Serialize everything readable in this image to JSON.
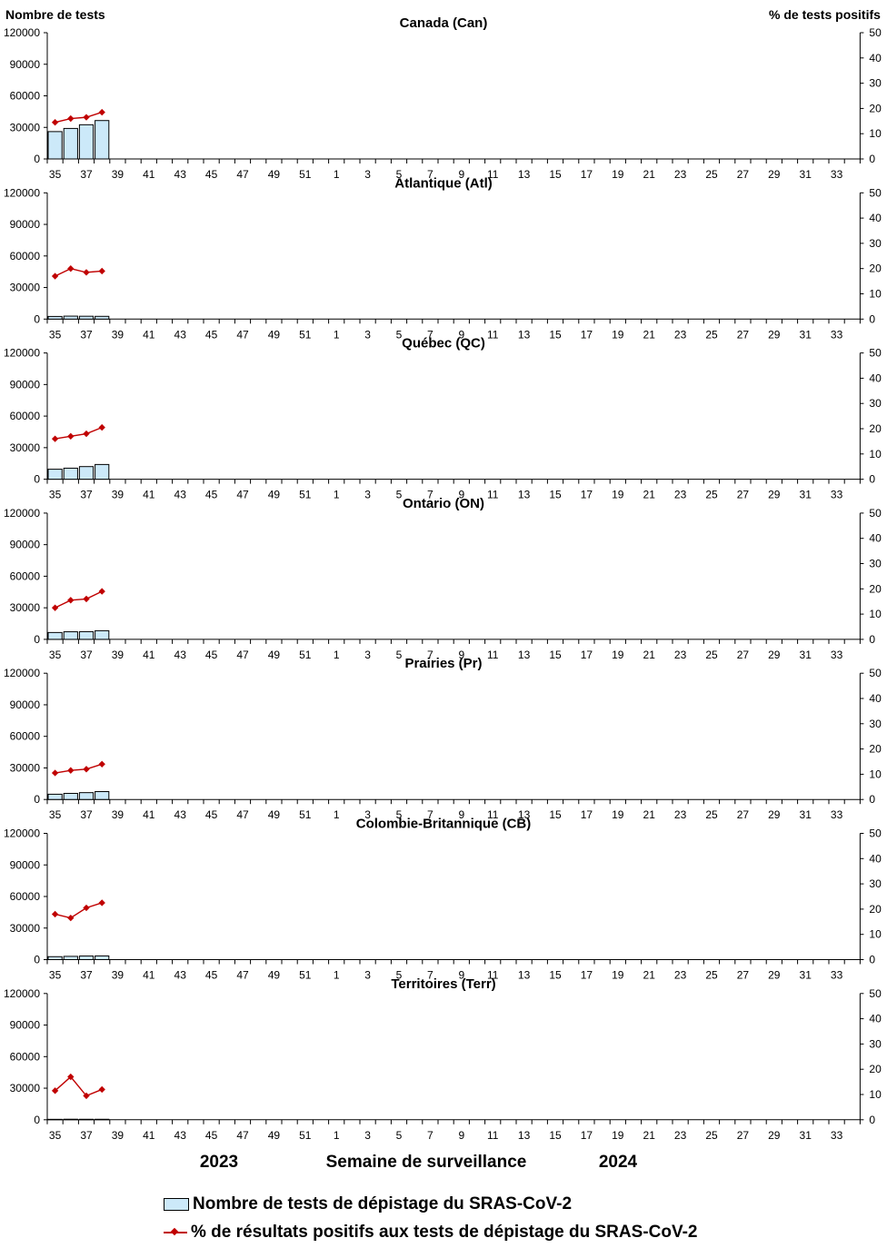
{
  "chart_data": {
    "type": "bar+line",
    "left_axis_title": "Nombre de tests",
    "right_axis_title": "% de tests positifs",
    "xlabel": "Semaine de surveillance",
    "year_labels": [
      "2023",
      "2024"
    ],
    "x_ticks": [
      "35",
      "37",
      "39",
      "41",
      "43",
      "45",
      "47",
      "49",
      "51",
      "1",
      "3",
      "5",
      "7",
      "9",
      "11",
      "13",
      "15",
      "17",
      "19",
      "21",
      "23",
      "25",
      "27",
      "29",
      "31",
      "33"
    ],
    "weeks": [
      "35",
      "36",
      "37",
      "38",
      "39",
      "40",
      "41",
      "42",
      "43",
      "44",
      "45",
      "46",
      "47",
      "48",
      "49",
      "50",
      "51",
      "52",
      "1",
      "2",
      "3",
      "4",
      "5",
      "6",
      "7",
      "8",
      "9",
      "10",
      "11",
      "12",
      "13",
      "14",
      "15",
      "16",
      "17",
      "18",
      "19",
      "20",
      "21",
      "22",
      "23",
      "24",
      "25",
      "26",
      "27",
      "28",
      "29",
      "30",
      "31",
      "32",
      "33",
      "34"
    ],
    "ylim_left": [
      0,
      120000
    ],
    "yticks_left": [
      "0",
      "30000",
      "60000",
      "90000",
      "120000"
    ],
    "ylim_right": [
      0,
      50
    ],
    "yticks_right": [
      "0",
      "10",
      "20",
      "30",
      "40",
      "50"
    ],
    "legend": [
      "Nombre de tests de dépistage du SRAS-CoV-2",
      "% de résultats positifs aux tests de dépistage du SRAS-CoV-2"
    ],
    "colors": {
      "bar_fill": "#cce9f9",
      "bar_stroke": "#000000",
      "line": "#c00000"
    },
    "panels": [
      {
        "title": "Canada (Can)",
        "tests": [
          26000,
          29000,
          32500,
          36500
        ],
        "percent_positive": [
          14.5,
          16.0,
          16.5,
          18.5
        ]
      },
      {
        "title": "Atlantique (Atl)",
        "tests": [
          2500,
          2800,
          2700,
          2600
        ],
        "percent_positive": [
          17.0,
          20.0,
          18.5,
          19.0
        ]
      },
      {
        "title": "Québec (QC)",
        "tests": [
          9500,
          10500,
          12000,
          14000
        ],
        "percent_positive": [
          16.0,
          17.0,
          18.0,
          20.5
        ]
      },
      {
        "title": "Ontario (ON)",
        "tests": [
          6500,
          7200,
          7300,
          8200
        ],
        "percent_positive": [
          12.5,
          15.5,
          16.0,
          19.0
        ]
      },
      {
        "title": "Prairies (Pr)",
        "tests": [
          5000,
          5800,
          6500,
          7500
        ],
        "percent_positive": [
          10.5,
          11.5,
          12.0,
          14.0
        ]
      },
      {
        "title": "Colombie-Britannique (CB)",
        "tests": [
          2800,
          3100,
          3400,
          3500
        ],
        "percent_positive": [
          18.0,
          16.5,
          20.5,
          22.5
        ]
      },
      {
        "title": "Territoires (Terr)",
        "tests": [
          400,
          500,
          450,
          450
        ],
        "percent_positive": [
          11.5,
          17.0,
          9.5,
          12.0
        ]
      }
    ]
  }
}
